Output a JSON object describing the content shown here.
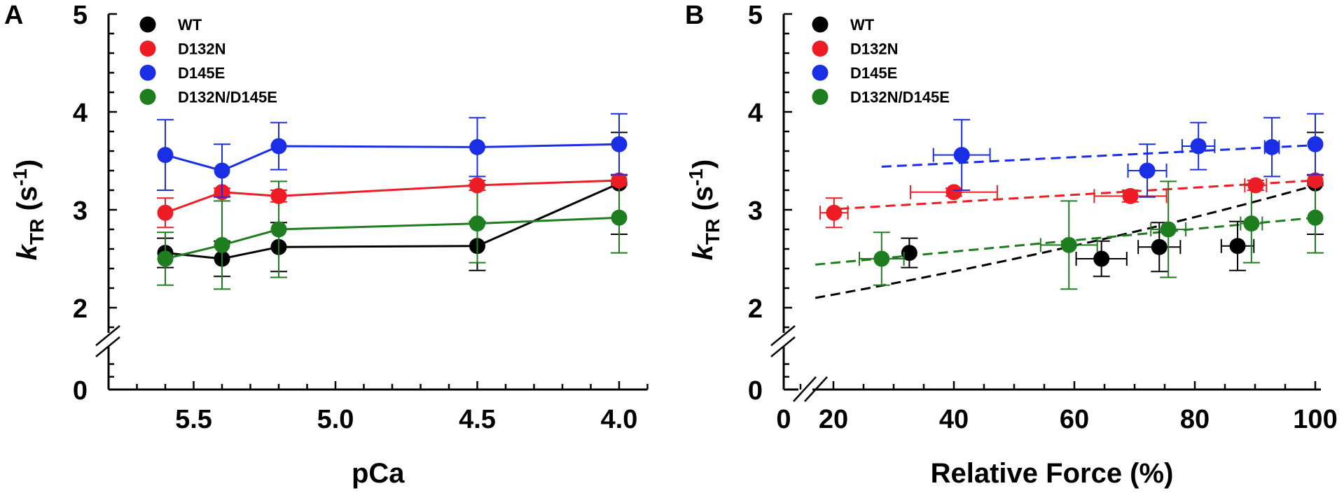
{
  "colors": {
    "WT": "#000000",
    "D132N": "#ee1c25",
    "D145E": "#1a2ee6",
    "D132N/D145E": "#1e7d1e",
    "axis": "#000000"
  },
  "legend": [
    "WT",
    "D132N",
    "D145E",
    "D132N/D145E"
  ],
  "chart_data": [
    {
      "panel": "A",
      "type": "line",
      "title": "",
      "xlabel": "pCa",
      "ylabel": "kTR (s-1)",
      "ylabel_parts": {
        "main": "k",
        "sub": "TR",
        "unit_open": " (s",
        "sup": "-1",
        "unit_close": ")"
      },
      "x_reversed": true,
      "xlim": [
        5.8,
        3.9
      ],
      "ylim": [
        0,
        5
      ],
      "y_axis_break": [
        1.7,
        1.4
      ],
      "x_ticks": [
        5.5,
        5.0,
        4.5,
        4.0
      ],
      "x_tick_labels": [
        "5.5",
        "5.0",
        "4.5",
        "4.0"
      ],
      "y_ticks": [
        0,
        2,
        3,
        4,
        5
      ],
      "y_tick_labels": [
        "0",
        "2",
        "3",
        "4",
        "5"
      ],
      "legend_position": "top-left",
      "grid": false,
      "x": [
        5.6,
        5.4,
        5.2,
        4.5,
        4.0
      ],
      "series": [
        {
          "name": "WT",
          "values": [
            2.56,
            2.5,
            2.62,
            2.63,
            3.27
          ],
          "yerr": [
            0.15,
            0.18,
            0.25,
            0.25,
            0.52
          ]
        },
        {
          "name": "D132N",
          "values": [
            2.97,
            3.18,
            3.14,
            3.25,
            3.3
          ],
          "yerr": [
            0.15,
            0.04,
            0.06,
            0.05,
            0.05
          ]
        },
        {
          "name": "D145E",
          "values": [
            3.56,
            3.4,
            3.65,
            3.64,
            3.67
          ],
          "yerr": [
            0.36,
            0.27,
            0.24,
            0.3,
            0.31
          ]
        },
        {
          "name": "D132N/D145E",
          "values": [
            2.5,
            2.64,
            2.8,
            2.86,
            2.92
          ],
          "yerr": [
            0.27,
            0.45,
            0.49,
            0.4,
            0.36
          ]
        }
      ]
    },
    {
      "panel": "B",
      "type": "scatter",
      "title": "",
      "xlabel": "Relative Force (%)",
      "ylabel": "kTR (s-1)",
      "ylabel_parts": {
        "main": "k",
        "sub": "TR",
        "unit_open": " (s",
        "sup": "-1",
        "unit_close": ")"
      },
      "xlim": [
        0,
        101
      ],
      "x_axis_break": [
        3,
        17
      ],
      "ylim": [
        0,
        5
      ],
      "y_axis_break": [
        1.7,
        1.4
      ],
      "x_ticks": [
        0,
        20,
        40,
        60,
        80,
        100
      ],
      "x_tick_labels": [
        "0",
        "20",
        "40",
        "60",
        "80",
        "100"
      ],
      "y_ticks": [
        0,
        2,
        3,
        4,
        5
      ],
      "y_tick_labels": [
        "0",
        "2",
        "3",
        "4",
        "5"
      ],
      "legend_position": "top-left",
      "grid": false,
      "series": [
        {
          "name": "WT",
          "points": [
            {
              "x": 32.6,
              "y": 2.56,
              "xerr": 0.5,
              "yerr": 0.15
            },
            {
              "x": 64.5,
              "y": 2.5,
              "xerr": 4.2,
              "yerr": 0.18
            },
            {
              "x": 74.1,
              "y": 2.62,
              "xerr": 3.5,
              "yerr": 0.25
            },
            {
              "x": 87.1,
              "y": 2.63,
              "xerr": 2.7,
              "yerr": 0.25
            },
            {
              "x": 100,
              "y": 3.27,
              "xerr": 0,
              "yerr": 0.52
            }
          ],
          "fit": {
            "x": [
              17,
              100
            ],
            "y_start": 2.1,
            "y_end": 3.25,
            "curve": "exponential"
          }
        },
        {
          "name": "D132N",
          "points": [
            {
              "x": 20.1,
              "y": 2.97,
              "xerr": 2.3,
              "yerr": 0.15
            },
            {
              "x": 40.0,
              "y": 3.18,
              "xerr": 7.2,
              "yerr": 0.04
            },
            {
              "x": 69.3,
              "y": 3.14,
              "xerr": 6.0,
              "yerr": 0.06
            },
            {
              "x": 90.1,
              "y": 3.25,
              "xerr": 1.8,
              "yerr": 0.05
            },
            {
              "x": 100,
              "y": 3.3,
              "xerr": 0,
              "yerr": 0.05
            }
          ],
          "fit": {
            "x": [
              21,
              100
            ],
            "y_start": 3.01,
            "y_end": 3.3,
            "curve": "linear"
          }
        },
        {
          "name": "D145E",
          "points": [
            {
              "x": 41.3,
              "y": 3.56,
              "xerr": 4.7,
              "yerr": 0.36
            },
            {
              "x": 72.1,
              "y": 3.4,
              "xerr": 3.2,
              "yerr": 0.27
            },
            {
              "x": 80.6,
              "y": 3.65,
              "xerr": 2.7,
              "yerr": 0.24
            },
            {
              "x": 92.8,
              "y": 3.64,
              "xerr": 1.2,
              "yerr": 0.3
            },
            {
              "x": 100,
              "y": 3.67,
              "xerr": 0,
              "yerr": 0.31
            }
          ],
          "fit": {
            "x": [
              28,
              100
            ],
            "y_start": 3.44,
            "y_end": 3.66,
            "curve": "linear"
          }
        },
        {
          "name": "D132N/D145E",
          "points": [
            {
              "x": 28.0,
              "y": 2.5,
              "xerr": 3.7,
              "yerr": 0.27
            },
            {
              "x": 59.1,
              "y": 2.64,
              "xerr": 4.7,
              "yerr": 0.45
            },
            {
              "x": 75.6,
              "y": 2.8,
              "xerr": 2.9,
              "yerr": 0.49
            },
            {
              "x": 89.4,
              "y": 2.86,
              "xerr": 1.8,
              "yerr": 0.4
            },
            {
              "x": 100,
              "y": 2.92,
              "xerr": 0,
              "yerr": 0.36
            }
          ],
          "fit": {
            "x": [
              17,
              100
            ],
            "y_start": 2.44,
            "y_end": 2.92,
            "curve": "linear"
          }
        }
      ]
    }
  ]
}
